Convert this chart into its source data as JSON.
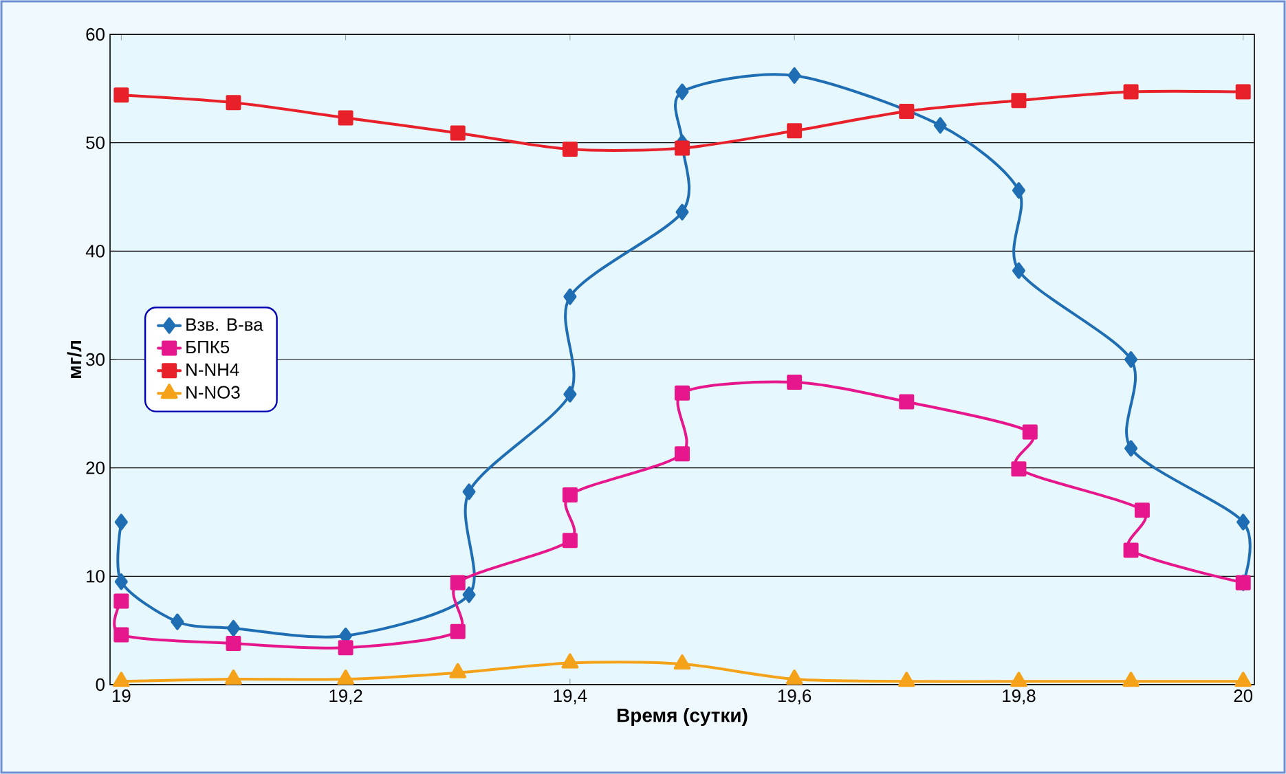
{
  "chart_data": {
    "type": "line",
    "xlabel": "Время (сутки)",
    "ylabel": "мг/л",
    "xlim": [
      18.99,
      20.01
    ],
    "ylim": [
      0,
      60
    ],
    "xticks": [
      19,
      {
        "value": 19.2,
        "label": "19,2"
      },
      {
        "value": 19.4,
        "label": "19,4"
      },
      {
        "value": 19.6,
        "label": "19,6"
      },
      {
        "value": 19.8,
        "label": "19,8"
      },
      20
    ],
    "yticks": [
      0,
      10,
      20,
      30,
      40,
      50,
      60
    ],
    "grid": "y",
    "legend": "left",
    "line_style": "solid",
    "series": [
      {
        "name": "Взв. В-ва",
        "color": "#1f6db3",
        "marker": "diamond",
        "x": [
          19,
          19,
          19.05,
          19.1,
          19.2,
          19.31,
          19.31,
          19.4,
          19.4,
          19.5,
          19.5,
          19.5,
          19.6,
          19.73,
          19.8,
          19.8,
          19.9,
          19.9,
          20,
          20
        ],
        "values": [
          15,
          9.5,
          5.8,
          5.2,
          4.5,
          8.3,
          17.8,
          26.8,
          35.8,
          43.6,
          50,
          54.7,
          56.2,
          51.6,
          45.6,
          38.2,
          30,
          21.8,
          15,
          9.4
        ]
      },
      {
        "name": "БПК5",
        "color": "#e6168c",
        "marker": "square",
        "x": [
          19,
          19,
          19.1,
          19.2,
          19.3,
          19.3,
          19.4,
          19.4,
          19.5,
          19.5,
          19.6,
          19.7,
          19.81,
          19.8,
          19.91,
          19.9,
          20
        ],
        "values": [
          7.7,
          4.6,
          3.8,
          3.4,
          4.9,
          9.4,
          13.3,
          17.5,
          21.3,
          26.9,
          27.9,
          26.1,
          23.3,
          19.9,
          16.1,
          12.4,
          9.4
        ]
      },
      {
        "name": "N-NH4",
        "color": "#e8202a",
        "marker": "square",
        "x": [
          19,
          19.1,
          19.2,
          19.3,
          19.4,
          19.5,
          19.6,
          19.7,
          19.8,
          19.9,
          20
        ],
        "values": [
          54.4,
          53.7,
          52.3,
          50.9,
          49.4,
          49.5,
          51.1,
          52.9,
          53.9,
          54.7,
          54.7
        ]
      },
      {
        "name": "N-NO3",
        "color": "#f5a21b",
        "marker": "triangle",
        "x": [
          19,
          19.1,
          19.2,
          19.3,
          19.4,
          19.5,
          19.6,
          19.7,
          19.8,
          19.9,
          20
        ],
        "values": [
          0.3,
          0.5,
          0.5,
          1.1,
          2.0,
          1.9,
          0.5,
          0.3,
          0.3,
          0.3,
          0.3
        ]
      }
    ]
  }
}
